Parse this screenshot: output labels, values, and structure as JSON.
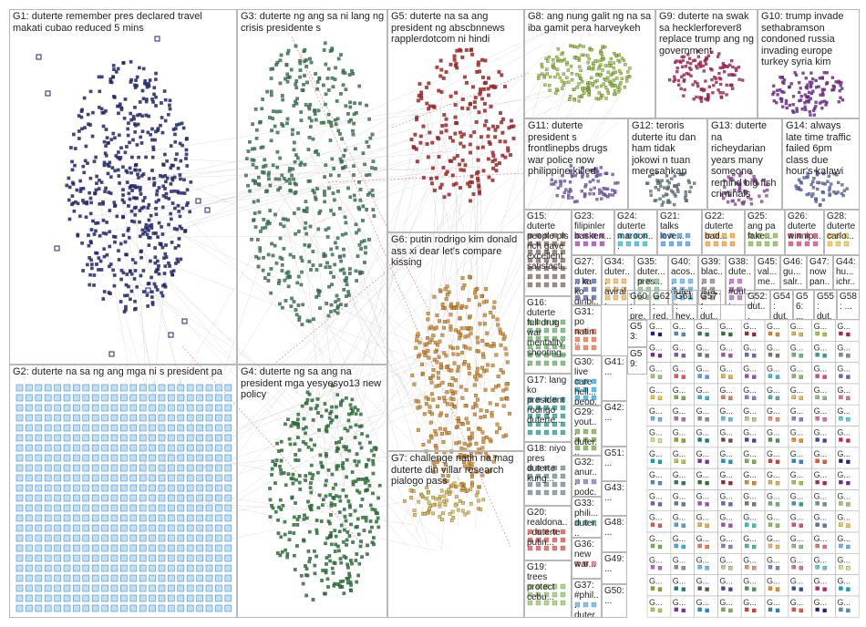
{
  "title": "",
  "colors": {
    "edge": "#b4b4b4",
    "red_edge": "#e05050",
    "border": "#b8b8b8"
  },
  "groups": [
    {
      "id": "G1",
      "text": "G1: duterte remember pres declared travel makati cubao reduced 5 mins",
      "color": "#1a237e"
    },
    {
      "id": "G2",
      "text": "G2: duterte na sa ng ang mga ni s president pa",
      "color": "#4a90c8"
    },
    {
      "id": "G3",
      "text": "G3: duterte ng ang sa ni lang ng crisis presidente s",
      "color": "#2e7d4f"
    },
    {
      "id": "G4",
      "text": "G4: duterte ng sa ang na president mga yesyesyo13 new policy",
      "color": "#1f7a2e"
    },
    {
      "id": "G5",
      "text": "G5: duterte na sa ang president ng abscbnnews rapplerdotcom ni hindi",
      "color": "#b71c1c"
    },
    {
      "id": "G6",
      "text": "G6: putin rodrigo kim donald ass xi dear let's compare kissing",
      "color": "#e08a1e"
    },
    {
      "id": "G7",
      "text": "G7: challenge natin na mag duterte din villar research pialogo pass",
      "color": "#e0b93a"
    },
    {
      "id": "G8",
      "text": "G8: ang nung galit ng na sa iba gamit pera harveykeh",
      "color": "#9acd32"
    },
    {
      "id": "G9",
      "text": "G9: duterte na swak sa hecklerforever8 replace trump ang ng government",
      "color": "#c2185b"
    },
    {
      "id": "G10",
      "text": "G10: trump invade sethabramson condoned russia invading europe turkey syria kim",
      "color": "#7b1fa2"
    },
    {
      "id": "G11",
      "text": "G11: duterte president s frontlinepbs drugs war police now philippine killed",
      "color": "#7e57c2"
    },
    {
      "id": "G12",
      "text": "G12: teroris duterte itu dan ham tidak jokowi n tuan meresahkan",
      "color": "#607d8b"
    },
    {
      "id": "G13",
      "text": "G13: duterte na richeydarian years many someone remind big fish criminals",
      "color": "#ab47bc"
    },
    {
      "id": "G14",
      "text": "G14: always late time traffic failed 6pm class due hour's kalawi",
      "color": "#5c6bc0"
    },
    {
      "id": "G15",
      "text": "G15: duterte people pls rich gave excellent satisfacti...",
      "color": "#8d6e63"
    },
    {
      "id": "G16",
      "text": "G16: duterte full drug war mentality shooting...",
      "color": "#66bb6a"
    },
    {
      "id": "G17",
      "text": "G17: lang ko president rodrigo duterte...",
      "color": "#26a69a"
    },
    {
      "id": "G18",
      "text": "G18: niyo pres duterte kung...",
      "color": "#78909c"
    },
    {
      "id": "G19",
      "text": "G19: trees protect cebu...",
      "color": "#9ccc65"
    },
    {
      "id": "G20",
      "text": "G20: realdona... duterte putin...",
      "color": "#ef5350"
    },
    {
      "id": "G21",
      "text": "G21: talks love...",
      "color": "#42a5f5"
    },
    {
      "id": "G22",
      "text": "G22: duterte bad...",
      "color": "#ffa726"
    },
    {
      "id": "G23",
      "text": "G23: filipinler basken...",
      "color": "#ab47bc"
    },
    {
      "id": "G24",
      "text": "G24: duterte maroon...",
      "color": "#26c6da"
    },
    {
      "id": "G25",
      "text": "G25: ang pa fake...",
      "color": "#8bc34a"
    },
    {
      "id": "G26",
      "text": "G26: duterte winnip...",
      "color": "#ec407a"
    },
    {
      "id": "G27",
      "text": "G27: duter... ka ko ginbi...",
      "color": "#5c6bc0"
    },
    {
      "id": "G28",
      "text": "G28: duterte carlo...",
      "color": "#ffca28"
    },
    {
      "id": "G29",
      "text": "G29: yout... duter... presi...",
      "color": "#7cb342"
    },
    {
      "id": "G30",
      "text": "G30: live care hell... peop...",
      "color": "#29b6f6"
    },
    {
      "id": "G31",
      "text": "G31: po natin...",
      "color": "#ff7043"
    },
    {
      "id": "G32",
      "text": "G32: anur... podc...",
      "color": "#9575cd"
    },
    {
      "id": "G33",
      "text": "G33: phili... duter...",
      "color": "#4db6ac"
    },
    {
      "id": "G34",
      "text": "G34: duter... aviral...",
      "color": "#ffb74d"
    },
    {
      "id": "G35",
      "text": "G35: duter... pres...",
      "color": "#81c784"
    },
    {
      "id": "G36",
      "text": "G36: new war...",
      "color": "#e57373"
    },
    {
      "id": "G37",
      "text": "G37: #phil... duter...",
      "color": "#64b5f6"
    },
    {
      "id": "G38",
      "text": "G38: dute... #dut...",
      "color": "#ba68c8"
    },
    {
      "id": "G39",
      "text": "G39: blac... isra...",
      "color": "#a1887f"
    },
    {
      "id": "G40",
      "text": "G40: acos... duter...",
      "color": "#4fc3f7"
    },
    {
      "id": "G41",
      "text": "G41: ...",
      "color": "#aed581"
    },
    {
      "id": "G42",
      "text": "G42: ...",
      "color": "#ff8a65"
    },
    {
      "id": "G43",
      "text": "G43: ...",
      "color": "#7986cb"
    },
    {
      "id": "G44",
      "text": "G44: hu... ichr...",
      "color": "#f06292"
    },
    {
      "id": "G45",
      "text": "G45: val... me...",
      "color": "#4dd0e1"
    },
    {
      "id": "G46",
      "text": "G46: gu... salr...",
      "color": "#dce775"
    },
    {
      "id": "G47",
      "text": "G47: now pan...",
      "color": "#9e9d24"
    },
    {
      "id": "G48",
      "text": "G48: ...",
      "color": "#00897b"
    },
    {
      "id": "G49",
      "text": "G49: ...",
      "color": "#6d4c41"
    },
    {
      "id": "G50",
      "text": "G50: ...",
      "color": "#5e35b1"
    },
    {
      "id": "G51",
      "text": "G51: ...",
      "color": "#43a047"
    },
    {
      "id": "G52",
      "text": "G52: dut... me...",
      "color": "#fb8c00"
    },
    {
      "id": "G53",
      "text": "G53: ...",
      "color": "#3949ab"
    },
    {
      "id": "G54",
      "text": "G54: dut...",
      "color": "#d81b60"
    },
    {
      "id": "G55",
      "text": "G55: dut... siz...",
      "color": "#00acc1"
    },
    {
      "id": "G56",
      "text": "G56: ...",
      "color": "#c0ca33"
    },
    {
      "id": "G57",
      "text": "G57: dut...",
      "color": "#8e24aa"
    },
    {
      "id": "G58",
      "text": "G58: ...",
      "color": "#039be5"
    },
    {
      "id": "G59",
      "text": "G59: ...",
      "color": "#7cb342"
    },
    {
      "id": "G60",
      "text": "G60: pre...",
      "color": "#e53935"
    },
    {
      "id": "G61",
      "text": "G61: hey...",
      "color": "#1e88e5"
    },
    {
      "id": "G62",
      "text": "G62: red...",
      "color": "#f4511e"
    }
  ],
  "small_grid_label": "G..."
}
